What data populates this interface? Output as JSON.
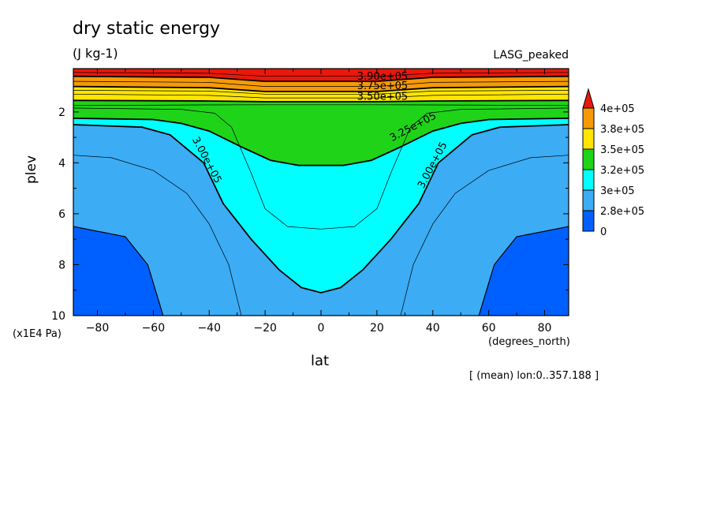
{
  "chart_data": {
    "type": "contour",
    "title": "dry static energy",
    "units": "(J kg-1)",
    "experiment": "LASG_peaked",
    "xlabel": "lat",
    "xunit": "(degrees_north)",
    "ylabel": "plev",
    "yunit": "(x1E4 Pa)",
    "note": "[ (mean) lon:0..357.188 ]",
    "xlim": [
      -88.6,
      88.6
    ],
    "ylim": [
      10,
      0.3
    ],
    "y_reversed": true,
    "xticks": [
      -80,
      -60,
      -40,
      -20,
      0,
      20,
      40,
      60,
      80
    ],
    "yticks": [
      2,
      4,
      6,
      8,
      10
    ],
    "colorbar": {
      "labels": [
        "4e+05",
        "3.8e+05",
        "3.5e+05",
        "3.2e+05",
        "3e+05",
        "2.8e+05",
        "0"
      ],
      "colors": [
        "#e8180c",
        "#f59a06",
        "#ffe500",
        "#1fd418",
        "#00ffff",
        "#3cacf4",
        "#0060ff"
      ]
    },
    "bands": [
      {
        "range": "<2.8e+05",
        "color": "#0060ff"
      },
      {
        "range": "2.8e+05-3.0e+05",
        "color": "#3cacf4"
      },
      {
        "range": "3.0e+05-3.25e+05",
        "color": "#00ffff"
      },
      {
        "range": "3.25e+05-3.5e+05",
        "color": "#1fd418"
      },
      {
        "range": "3.5e+05-3.75e+05",
        "color": "#ffe500"
      },
      {
        "range": "3.75e+05-4.0e+05",
        "color": "#f59a06"
      },
      {
        "range": ">4.0e+05",
        "color": "#e8180c"
      }
    ],
    "contours": [
      {
        "label": "2.75e+05",
        "major": false,
        "points": [
          [
            -88.6,
            6.5
          ],
          [
            -70,
            6.9
          ],
          [
            -62,
            8.0
          ],
          [
            -56.5,
            10
          ]
        ],
        "mirror": true
      },
      {
        "label": "3.00e+05",
        "major": true,
        "points": [
          [
            -88.6,
            2.5
          ],
          [
            -64,
            2.6
          ],
          [
            -54,
            2.9
          ],
          [
            -42,
            4.0
          ],
          [
            -35,
            5.6
          ],
          [
            -25,
            7.0
          ],
          [
            -15,
            8.2
          ],
          [
            -7,
            8.9
          ],
          [
            0,
            9.1
          ],
          [
            7,
            8.9
          ],
          [
            15,
            8.2
          ],
          [
            25,
            7.0
          ],
          [
            35,
            5.6
          ],
          [
            42,
            4.0
          ],
          [
            54,
            2.9
          ],
          [
            64,
            2.6
          ],
          [
            88.6,
            2.5
          ]
        ]
      },
      {
        "label": "3.25e+05",
        "major": true,
        "points": [
          [
            -88.6,
            2.25
          ],
          [
            -60,
            2.3
          ],
          [
            -50,
            2.45
          ],
          [
            -40,
            2.75
          ],
          [
            -28,
            3.4
          ],
          [
            -18,
            3.9
          ],
          [
            -8,
            4.1
          ],
          [
            0,
            4.1
          ],
          [
            8,
            4.1
          ],
          [
            18,
            3.9
          ],
          [
            28,
            3.4
          ],
          [
            40,
            2.75
          ],
          [
            50,
            2.45
          ],
          [
            60,
            2.3
          ],
          [
            88.6,
            2.25
          ]
        ]
      },
      {
        "label": "3.50e+05",
        "major": true,
        "points": [
          [
            -88.6,
            1.55
          ],
          [
            -40,
            1.57
          ],
          [
            -20,
            1.6
          ],
          [
            0,
            1.6
          ],
          [
            20,
            1.6
          ],
          [
            40,
            1.57
          ],
          [
            88.6,
            1.55
          ]
        ]
      },
      {
        "label": "3.75e+05",
        "major": true,
        "points": [
          [
            -88.6,
            1.0
          ],
          [
            -40,
            1.05
          ],
          [
            -20,
            1.2
          ],
          [
            0,
            1.2
          ],
          [
            20,
            1.2
          ],
          [
            40,
            1.05
          ],
          [
            88.6,
            1.0
          ]
        ]
      },
      {
        "label": "3.90e+05",
        "major": true,
        "points": [
          [
            -88.6,
            0.6
          ],
          [
            -40,
            0.64
          ],
          [
            -20,
            0.8
          ],
          [
            0,
            0.8
          ],
          [
            20,
            0.8
          ],
          [
            40,
            0.64
          ],
          [
            88.6,
            0.6
          ]
        ]
      }
    ],
    "minor_lines": [
      {
        "points": [
          [
            -88.6,
            3.7
          ],
          [
            -75,
            3.8
          ],
          [
            -60,
            4.3
          ],
          [
            -48,
            5.2
          ],
          [
            -40,
            6.4
          ],
          [
            -33,
            8.0
          ],
          [
            -28.5,
            10
          ]
        ],
        "mirror": true
      },
      {
        "points": [
          [
            -88.6,
            1.85
          ],
          [
            -50,
            1.9
          ],
          [
            -38,
            2.05
          ],
          [
            -32,
            2.6
          ],
          [
            -25,
            4.4
          ],
          [
            -20,
            5.8
          ],
          [
            -12,
            6.5
          ],
          [
            0,
            6.6
          ],
          [
            12,
            6.5
          ],
          [
            20,
            5.8
          ],
          [
            25,
            4.4
          ],
          [
            32,
            2.6
          ],
          [
            38,
            2.05
          ],
          [
            50,
            1.9
          ],
          [
            88.6,
            1.85
          ]
        ]
      },
      {
        "points": [
          [
            -88.6,
            1.75
          ],
          [
            -50,
            1.73
          ],
          [
            -20,
            1.72
          ],
          [
            0,
            1.72
          ],
          [
            20,
            1.72
          ],
          [
            50,
            1.73
          ],
          [
            88.6,
            1.75
          ]
        ]
      },
      {
        "points": [
          [
            -88.6,
            1.3
          ],
          [
            -40,
            1.35
          ],
          [
            -20,
            1.45
          ],
          [
            0,
            1.45
          ],
          [
            20,
            1.45
          ],
          [
            40,
            1.35
          ],
          [
            88.6,
            1.3
          ]
        ]
      },
      {
        "points": [
          [
            -88.6,
            1.15
          ],
          [
            -40,
            1.18
          ],
          [
            -20,
            1.3
          ],
          [
            0,
            1.3
          ],
          [
            20,
            1.3
          ],
          [
            40,
            1.18
          ],
          [
            88.6,
            1.15
          ]
        ]
      },
      {
        "points": [
          [
            -88.6,
            0.8
          ],
          [
            -40,
            0.84
          ],
          [
            -20,
            1.0
          ],
          [
            0,
            1.0
          ],
          [
            20,
            1.0
          ],
          [
            40,
            0.84
          ],
          [
            88.6,
            0.8
          ]
        ]
      },
      {
        "points": [
          [
            -88.6,
            0.45
          ],
          [
            -40,
            0.48
          ],
          [
            -20,
            0.6
          ],
          [
            0,
            0.6
          ],
          [
            20,
            0.6
          ],
          [
            40,
            0.48
          ],
          [
            88.6,
            0.45
          ]
        ]
      }
    ],
    "contour_labels": [
      {
        "text": "3.90e+05",
        "lat": 22,
        "plev": 0.63,
        "angle": 0
      },
      {
        "text": "3.75e+05",
        "lat": 22,
        "plev": 1.0,
        "angle": 0
      },
      {
        "text": "3.50e+05",
        "lat": 22,
        "plev": 1.42,
        "angle": 0
      },
      {
        "text": "3.25e+05",
        "lat": 33,
        "plev": 2.6,
        "angle": -28
      },
      {
        "text": "3.00e+05",
        "lat": -41,
        "plev": 3.9,
        "angle": 62
      },
      {
        "text": "3.00e+05",
        "lat": 40,
        "plev": 4.1,
        "angle": -62
      }
    ]
  }
}
